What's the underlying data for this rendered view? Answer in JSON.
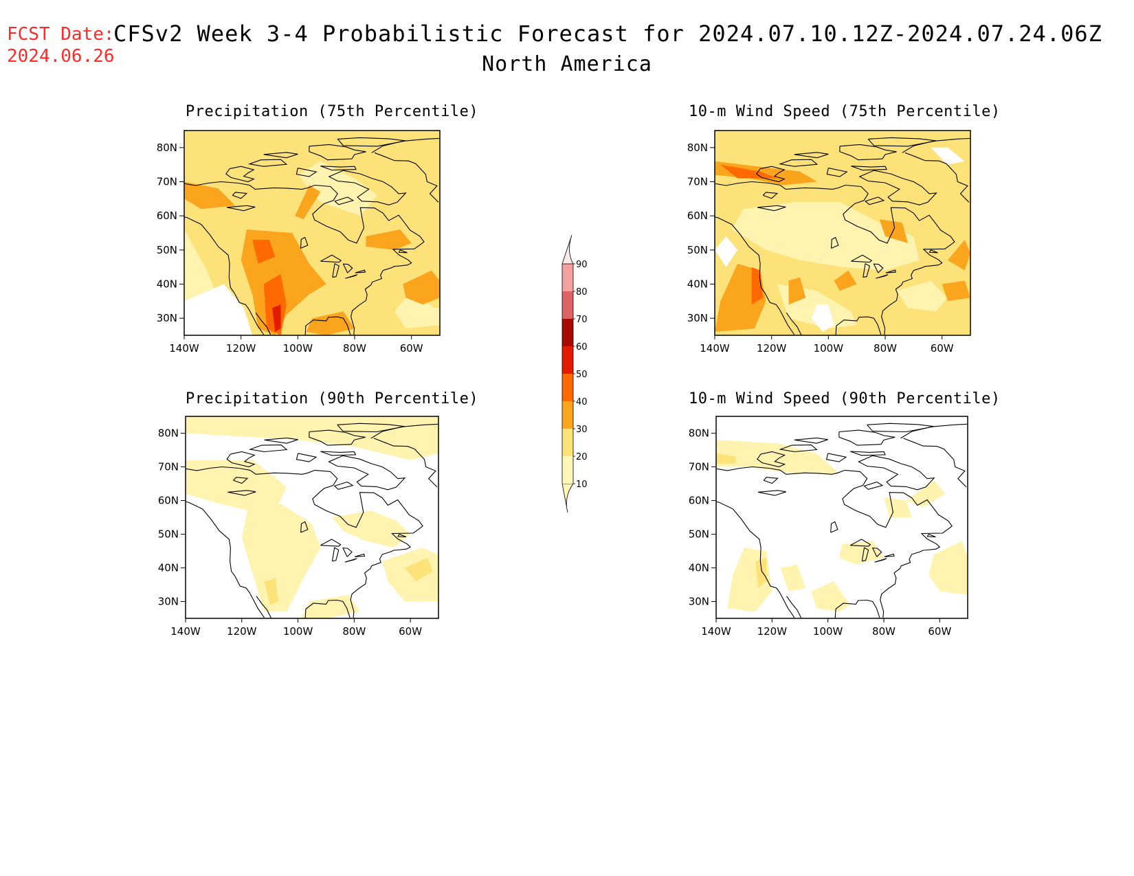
{
  "header": {
    "fcst_label": "FCST Date:",
    "fcst_date": "2024.06.26",
    "title": "CFSv2 Week 3-4 Probabilistic Forecast for 2024.07.10.12Z-2024.07.24.06Z",
    "region": "North America"
  },
  "panels": [
    {
      "title": "Precipitation (75th Percentile)"
    },
    {
      "title": "10-m Wind Speed (75th Percentile)"
    },
    {
      "title": "Precipitation (90th Percentile)"
    },
    {
      "title": "10-m Wind Speed (90th Percentile)"
    }
  ],
  "axes": {
    "lat_labels": [
      "80N",
      "70N",
      "60N",
      "50N",
      "40N",
      "30N"
    ],
    "lon_labels": [
      "140W",
      "120W",
      "100W",
      "80W",
      "60W"
    ],
    "lat_range": [
      25,
      85
    ],
    "lon_range": [
      -140,
      -50
    ]
  },
  "colorbar": {
    "levels": [
      "10",
      "20",
      "30",
      "40",
      "50",
      "60",
      "70",
      "80",
      "90"
    ],
    "colors": [
      "#fff8b8",
      "#fde27a",
      "#fba51f",
      "#fe6a00",
      "#e31c00",
      "#a60b00",
      "#dc6464",
      "#f3a0a0",
      "#fde8e8"
    ]
  },
  "map_colors": {
    "c1": "#fff3b0",
    "c2": "#fde27a",
    "c3": "#fba51f",
    "c4": "#fe6a00",
    "c5": "#e31c00",
    "c6": "#a60b00"
  }
}
